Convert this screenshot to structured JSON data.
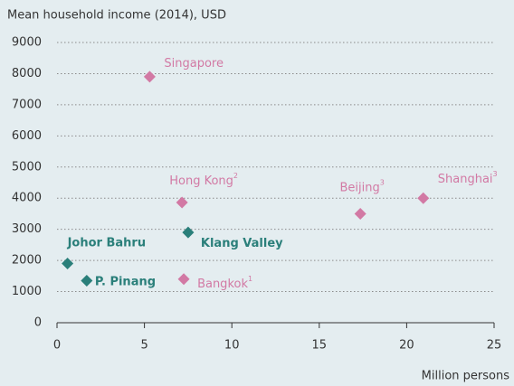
{
  "chart_data": {
    "type": "scatter",
    "y_axis_label": "Mean household income (2014), USD",
    "x_axis_label": "Million persons",
    "xlim": [
      0,
      25
    ],
    "xticks": [
      0,
      5,
      10,
      15,
      20,
      25
    ],
    "ylim": [
      0,
      9000
    ],
    "yticks": [
      0,
      1000,
      2000,
      3000,
      4000,
      5000,
      6000,
      7000,
      8000,
      9000
    ],
    "grid": true,
    "series": [
      {
        "color": "#d279a4",
        "label_weight": "normal",
        "labels": [
          "Singapore",
          "Hong Kong",
          "Beijing",
          "Shanghai",
          "Bangkok"
        ],
        "notes": [
          null,
          "2",
          "3",
          "3",
          "1"
        ],
        "x": [
          5.3,
          7.15,
          17.35,
          20.95,
          7.25
        ],
        "values": [
          7900,
          3860,
          3500,
          4000,
          1400
        ]
      },
      {
        "color": "#2a7f7a",
        "label_weight": "bold",
        "labels": [
          "Johor Bahru",
          "P. Pinang",
          "Klang Valley"
        ],
        "notes": [
          null,
          null,
          null
        ],
        "x": [
          0.6,
          1.7,
          7.5
        ],
        "values": [
          1900,
          1350,
          2900
        ]
      }
    ]
  }
}
